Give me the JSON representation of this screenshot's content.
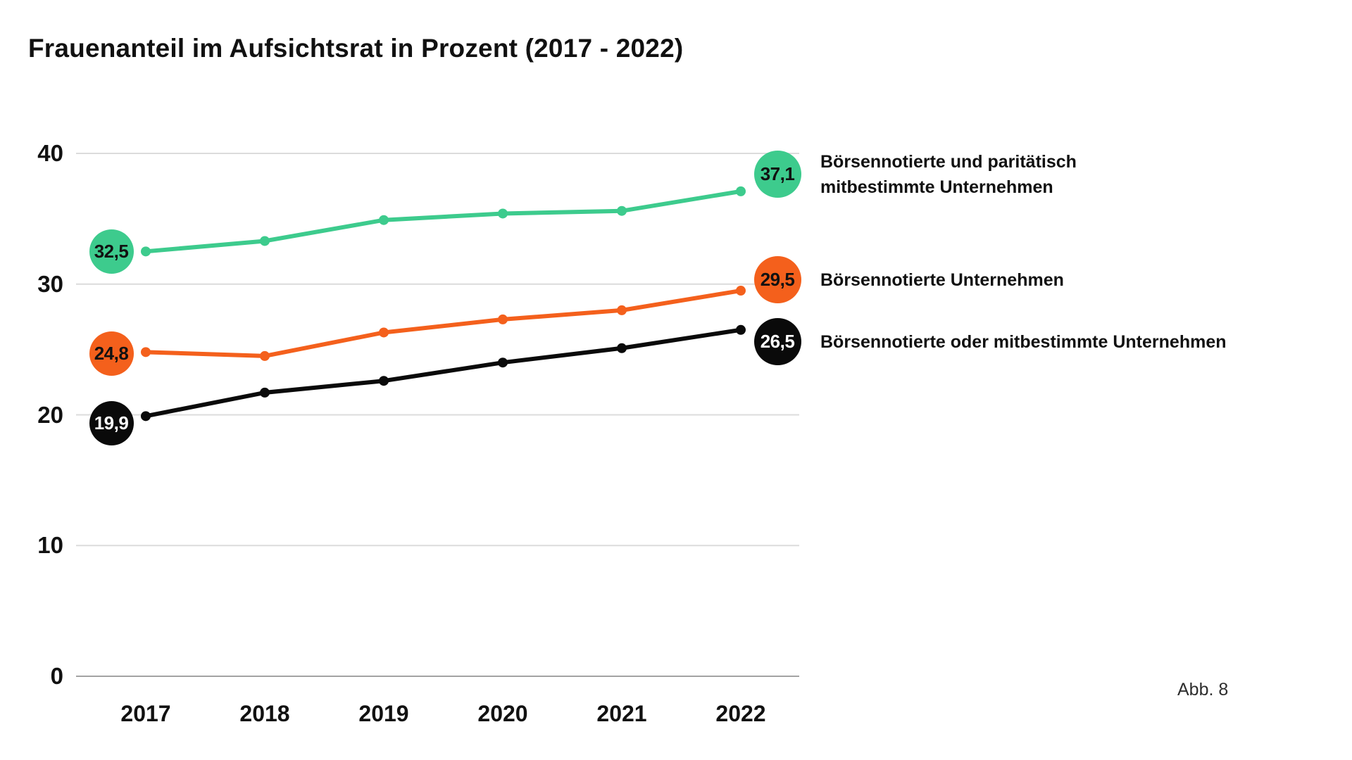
{
  "title": "Frauenanteil im Aufsichtsrat in Prozent (2017 - 2022)",
  "caption": "Abb. 8",
  "colors": {
    "green": "#3DCB8D",
    "orange": "#F4601C",
    "black": "#0A0A0A",
    "gridline": "#DCDCDC",
    "axis_line": "#A3A3A3",
    "text": "#111111"
  },
  "legend": {
    "series1_line1": "Börsennotierte und paritätisch",
    "series1_line2": "mitbestimmte Unternehmen",
    "series2": "Börsennotierte Unternehmen",
    "series3": "Börsennotierte oder mitbestimmte Unternehmen"
  },
  "chart_data": {
    "type": "line",
    "title": "Frauenanteil im Aufsichtsrat in Prozent (2017 - 2022)",
    "x": [
      2017,
      2018,
      2019,
      2020,
      2021,
      2022
    ],
    "xticks": [
      "2017",
      "2018",
      "2019",
      "2020",
      "2021",
      "2022"
    ],
    "yticks": [
      0,
      10,
      20,
      30,
      40
    ],
    "ylim": [
      0,
      40
    ],
    "grid": "horizontal",
    "legend_position": "right",
    "value_label_format": "decimal-comma",
    "series": [
      {
        "name": "Börsennotierte und paritätisch mitbestimmte Unternehmen",
        "color": "#3DCB8D",
        "label_text_color": "#111111",
        "values": [
          32.5,
          33.3,
          34.9,
          35.4,
          35.6,
          37.1
        ],
        "start_label": "32,5",
        "end_label": "37,1"
      },
      {
        "name": "Börsennotierte Unternehmen",
        "color": "#F4601C",
        "label_text_color": "#111111",
        "values": [
          24.8,
          24.5,
          26.3,
          27.3,
          28.0,
          29.5
        ],
        "start_label": "24,8",
        "end_label": "29,5"
      },
      {
        "name": "Börsennotierte oder mitbestimmte Unternehmen",
        "color": "#0A0A0A",
        "label_text_color": "#FFFFFF",
        "values": [
          19.9,
          21.7,
          22.6,
          24.0,
          25.1,
          26.5
        ],
        "start_label": "19,9",
        "end_label": "26,5"
      }
    ]
  }
}
